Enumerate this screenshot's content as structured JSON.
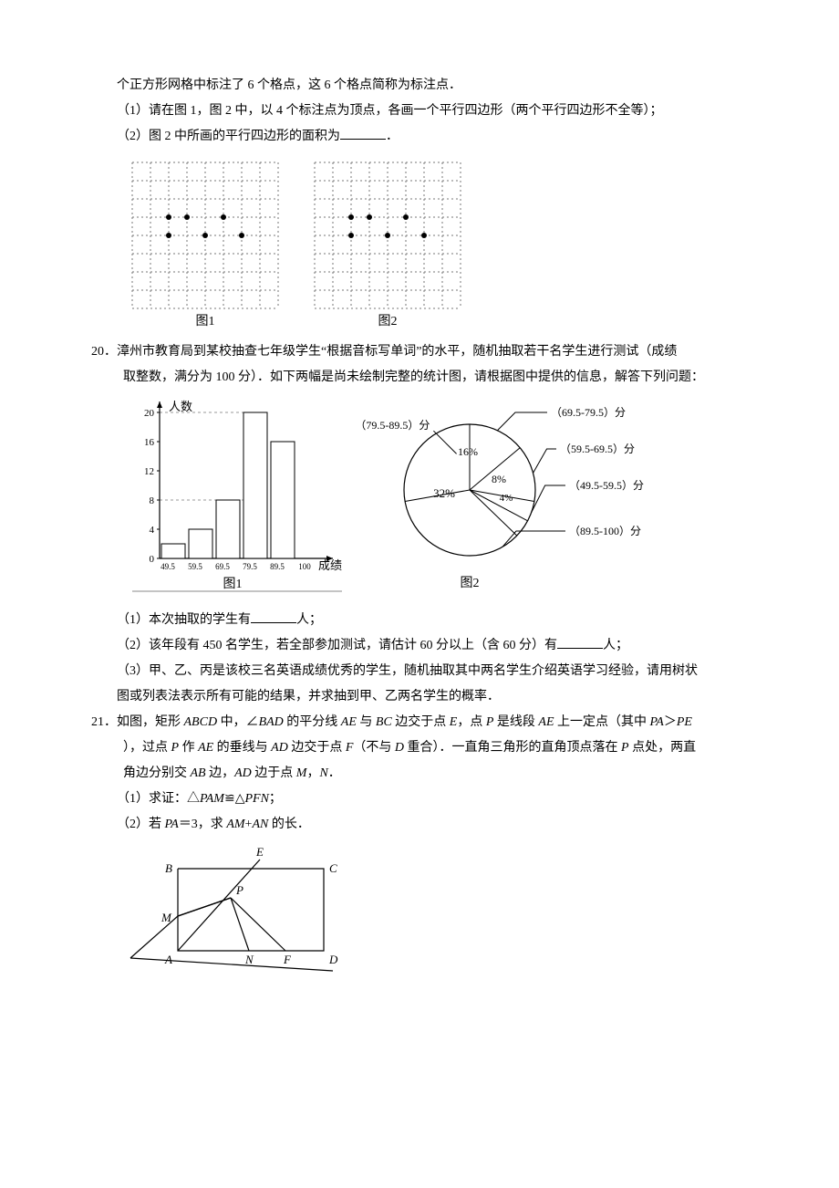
{
  "intro_cont": {
    "l1": "个正方形网格中标注了 6 个格点，这 6 个格点简称为标注点．",
    "q1": "（1）请在图 1，图 2 中，以 4 个标注点为顶点，各画一个平行四边形（两个平行四边形不全等）；",
    "q2_a": "（2）图 2 中所画的平行四边形的面积为",
    "q2_b": "．"
  },
  "grids": {
    "cols": 8,
    "rows": 8,
    "cell": 20,
    "label1": "图1",
    "label2": "图2",
    "line_color": "#777777",
    "dot_color": "#000000",
    "dots": [
      [
        2,
        3
      ],
      [
        3,
        3
      ],
      [
        5,
        3
      ],
      [
        2,
        4
      ],
      [
        4,
        4
      ],
      [
        6,
        4
      ]
    ]
  },
  "q20": {
    "num": "20．",
    "l1": "漳州市教育局到某校抽查七年级学生“根据音标写单词”的水平，随机抽取若干名学生进行测试（成绩",
    "l2": "取整数，满分为 100 分）．如下两幅是尚未绘制完整的统计图，请根据图中提供的信息，解答下列问题：",
    "bar": {
      "ylabel": "人数",
      "xlabel": "成绩",
      "yticks": [
        0,
        4,
        8,
        12,
        16,
        20
      ],
      "xticks": [
        "49.5",
        "59.5",
        "69.5",
        "79.5",
        "89.5",
        "100"
      ],
      "bars": [
        2,
        4,
        8,
        20,
        16,
        0
      ],
      "dash8": 8,
      "dash20": 20,
      "axis_color": "#000000",
      "grid_color": "#999999",
      "bar_fill": "#ffffff",
      "figlabel": "图1"
    },
    "pie": {
      "labels": {
        "l6979": "（69.5-79.5）分",
        "l7989": "（79.5-89.5）分",
        "l5969": "（59.5-69.5）分",
        "l4959": "（49.5-59.5）分",
        "l89100": "（89.5-100）分"
      },
      "inner": {
        "p32": "32%",
        "p16": "16%",
        "p8": "8%",
        "p4": "4%"
      },
      "figlabel": "图2",
      "stroke": "#000000"
    },
    "sub1_a": "（1）本次抽取的学生有",
    "sub1_b": "人；",
    "sub2_a": "（2）该年段有 450 名学生，若全部参加测试，请估计 60 分以上（含 60 分）有",
    "sub2_b": "人；",
    "sub3_a": "（3）甲、乙、丙是该校三名英语成绩优秀的学生，随机抽取其中两名学生介绍英语学习经验，请用树状",
    "sub3_b": "图或列表法表示所有可能的结果，并求抽到甲、乙两名学生的概率．"
  },
  "q21": {
    "num": "21．",
    "l1_a": "如图，矩形 ",
    "l1_b": " 中，∠",
    "l1_c": " 的平分线 ",
    "l1_d": " 与 ",
    "l1_e": " 边交于点 ",
    "l1_f": "，点 ",
    "l1_g": " 是线段 ",
    "l1_h": " 上一定点（其中 ",
    "l1_i": "＞",
    "l2_a": "），过点 ",
    "l2_b": " 作 ",
    "l2_c": " 的垂线与 ",
    "l2_d": " 边交于点 ",
    "l2_e": "（不与 ",
    "l2_f": " 重合）．一直角三角形的直角顶点落在 ",
    "l2_g": " 点处，两直",
    "l3_a": "角边分别交 ",
    "l3_b": " 边，",
    "l3_c": " 边于点 ",
    "l3_d": "，",
    "l3_e": "．",
    "sub1_a": "（1）求证：△",
    "sub1_b": "≌△",
    "sub1_c": "；",
    "sub2_a": "（2）若 ",
    "sub2_b": "＝3，求 ",
    "sub2_c": "+",
    "sub2_d": " 的长．",
    "it": {
      "ABCD": "ABCD",
      "BAD": "BAD",
      "AE": "AE",
      "BC": "BC",
      "E": "E",
      "P": "P",
      "PA": "PA",
      "PE": "PE",
      "AD": "AD",
      "F": "F",
      "D": "D",
      "AB": "AB",
      "M": "M",
      "N": "N",
      "PAM": "PAM",
      "PFN": "PFN",
      "AM": "AM",
      "AN": "AN"
    },
    "geo": {
      "B": "B",
      "E": "E",
      "C": "C",
      "M": "M",
      "P": "P",
      "A": "A",
      "N": "N",
      "F": "F",
      "D": "D",
      "stroke": "#000000"
    }
  }
}
